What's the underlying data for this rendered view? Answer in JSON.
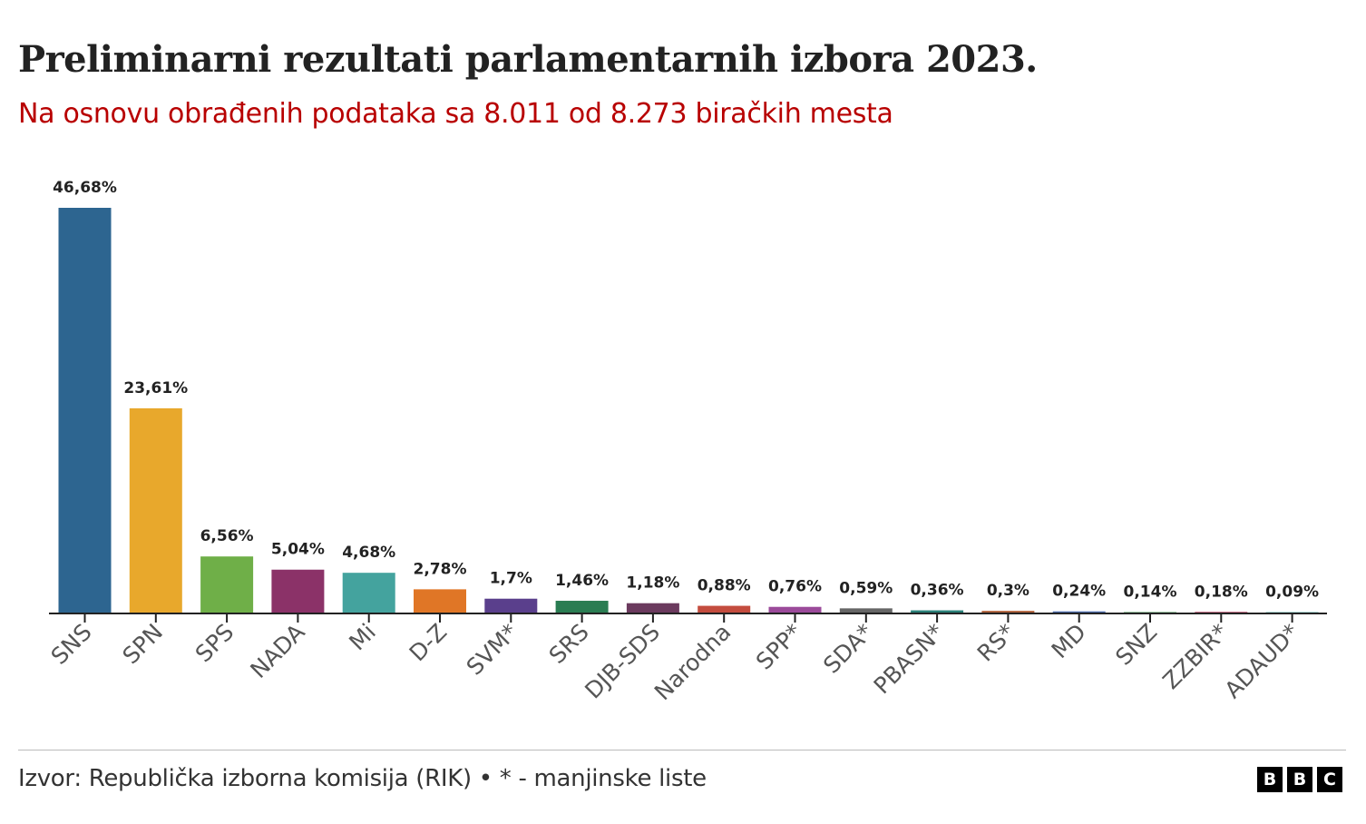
{
  "title": "Preliminarni rezultati parlamentarnih izbora 2023.",
  "subtitle": "Na osnovu obrađenih podataka sa 8.011 od 8.273 biračkih mesta",
  "source": "Izvor: Republička izborna komisija (RIK) • * - manjinske liste",
  "logo": "BBC",
  "chart_data": {
    "type": "bar",
    "categories": [
      "SNS",
      "SPN",
      "SPS",
      "NADA",
      "Mi",
      "D-Z",
      "SVM*",
      "SRS",
      "DJB-SDS",
      "Narodna",
      "SPP*",
      "SDA*",
      "PBASN*",
      "RS*",
      "MD",
      "SNZ",
      "ZZBIR*",
      "ADAUD*"
    ],
    "values": [
      46.68,
      23.61,
      6.56,
      5.04,
      4.68,
      2.78,
      1.7,
      1.46,
      1.18,
      0.88,
      0.76,
      0.59,
      0.36,
      0.3,
      0.24,
      0.14,
      0.18,
      0.09
    ],
    "data_labels": [
      "46,68%",
      "23,61%",
      "6,56%",
      "5,04%",
      "4,68%",
      "2,78%",
      "1,7%",
      "1,46%",
      "1,18%",
      "0,88%",
      "0,76%",
      "0,59%",
      "0,36%",
      "0,3%",
      "0,24%",
      "0,14%",
      "0,18%",
      "0,09%"
    ],
    "colors": [
      "#2d6590",
      "#e8a82c",
      "#6faf48",
      "#8b3268",
      "#44a39e",
      "#e07626",
      "#5a3f8c",
      "#2a7d52",
      "#6b3a5e",
      "#c44c3e",
      "#9b4a9a",
      "#666666",
      "#2a8078",
      "#b0603a",
      "#4a6aaa",
      "#3a8a4a",
      "#b03a5a",
      "#5ab0a8"
    ],
    "ylim": [
      0,
      46.68
    ],
    "grid": false,
    "xlabel": "",
    "ylabel": ""
  }
}
